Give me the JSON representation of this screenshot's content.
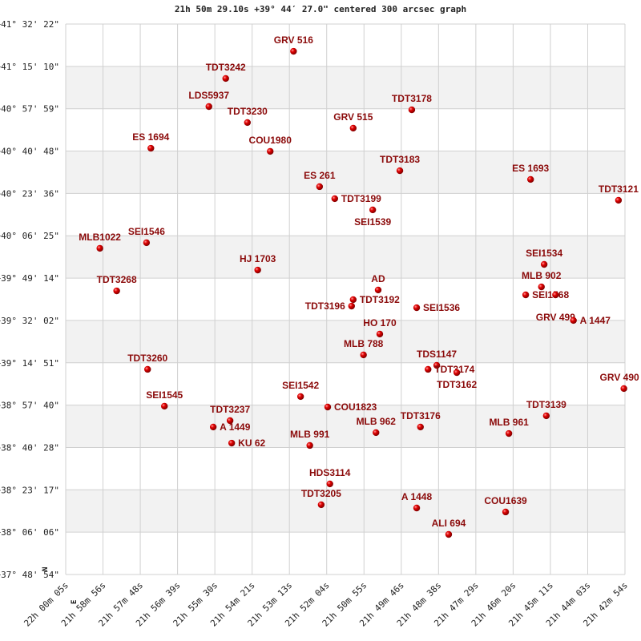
{
  "chart_data": {
    "type": "scatter",
    "title": "21h 50m 29.10s +39° 44′ 27.0\" centered 300 arcsec graph",
    "x_range": [
      "22:00:05",
      "21:42:54"
    ],
    "y_range": [
      "+41:32:22",
      "+37:48:54"
    ],
    "x_ticks": [
      "22h 00m 05s",
      "21h 58m 56s",
      "21h 57m 48s",
      "21h 56m 39s",
      "21h 55m 30s",
      "21h 54m 21s",
      "21h 53m 13s",
      "21h 52m 04s",
      "21h 50m 55s",
      "21h 49m 46s",
      "21h 48m 38s",
      "21h 47m 29s",
      "21h 46m 20s",
      "21h 45m 11s",
      "21h 44m 03s",
      "21h 42m 54s"
    ],
    "y_ticks": [
      "+41° 32' 22\"",
      "+41° 15' 10\"",
      "+40° 57' 59\"",
      "+40° 40' 48\"",
      "+40° 23' 36\"",
      "+40° 06' 25\"",
      "+39° 49' 14\"",
      "+39° 32' 02\"",
      "+39° 14' 51\"",
      "+38° 57' 40\"",
      "+38° 40' 28\"",
      "+38° 23' 17\"",
      "+38° 06' 06\"",
      "+37° 48' 54\""
    ],
    "grid": true,
    "alternating_bands": true,
    "compass": {
      "north": "N",
      "east": "E"
    },
    "colors": {
      "marker": "#dd0000",
      "label": "#8b0a0a",
      "band": "#f2f2f2",
      "grid": "#d0d0d0"
    },
    "points": [
      {
        "name": "GRV 516",
        "ra": "21:53:05",
        "dec": 41.355
      },
      {
        "name": "TDT3242",
        "ra": "21:55:10",
        "dec": 41.171
      },
      {
        "name": "LDS5937",
        "ra": "21:55:41",
        "dec": 40.981
      },
      {
        "name": "TDT3230",
        "ra": "21:54:30",
        "dec": 40.873
      },
      {
        "name": "TDT3178",
        "ra": "21:49:27",
        "dec": 40.959
      },
      {
        "name": "GRV 515",
        "ra": "21:51:15",
        "dec": 40.835
      },
      {
        "name": "ES 1694",
        "ra": "21:57:28",
        "dec": 40.699
      },
      {
        "name": "COU1980",
        "ra": "21:53:48",
        "dec": 40.678
      },
      {
        "name": "TDT3183",
        "ra": "21:49:49",
        "dec": 40.547
      },
      {
        "name": "ES 1693",
        "ra": "21:45:48",
        "dec": 40.488
      },
      {
        "name": "ES  261",
        "ra": "21:52:17",
        "dec": 40.439
      },
      {
        "name": "TDT3199",
        "ra": "21:51:49",
        "dec": 40.358
      },
      {
        "name": "SEI1539",
        "ra": "21:50:39",
        "dec": 40.282
      },
      {
        "name": "TDT3121",
        "ra": "21:43:06",
        "dec": 40.347
      },
      {
        "name": "MLB1022",
        "ra": "21:59:02",
        "dec": 40.022
      },
      {
        "name": "SEI1546",
        "ra": "21:57:36",
        "dec": 40.06
      },
      {
        "name": "HJ 1703",
        "ra": "21:54:11",
        "dec": 39.875
      },
      {
        "name": "SEI1534",
        "ra": "21:45:23",
        "dec": 39.913
      },
      {
        "name": "MLB 902",
        "ra": "21:45:28",
        "dec": 39.761
      },
      {
        "name": "SEI1568",
        "ra": "21:45:57",
        "dec": 39.707
      },
      {
        "name": "GRV 499",
        "ra": "21:45:02",
        "dec": 39.707
      },
      {
        "name": "TDT3268",
        "ra": "21:58:31",
        "dec": 39.734
      },
      {
        "name": "AD",
        "ra": "21:50:29",
        "dec": 39.74
      },
      {
        "name": "TDT3192",
        "ra": "21:51:15",
        "dec": 39.675
      },
      {
        "name": "TDT3196",
        "ra": "21:51:18",
        "dec": 39.631
      },
      {
        "name": "SEI1536",
        "ra": "21:49:18",
        "dec": 39.62
      },
      {
        "name": "A  1447",
        "ra": "21:44:29",
        "dec": 39.534
      },
      {
        "name": "HO  170",
        "ra": "21:50:26",
        "dec": 39.442
      },
      {
        "name": "MLB 788",
        "ra": "21:50:56",
        "dec": 39.301
      },
      {
        "name": "TDT3260",
        "ra": "21:57:34",
        "dec": 39.203
      },
      {
        "name": "TDS1147",
        "ra": "21:48:41",
        "dec": 39.23
      },
      {
        "name": "TDT3174",
        "ra": "21:48:57",
        "dec": 39.203
      },
      {
        "name": "TDT3162",
        "ra": "21:48:04",
        "dec": 39.181
      },
      {
        "name": "GRV 490",
        "ra": "21:42:56",
        "dec": 39.073
      },
      {
        "name": "SEI1542",
        "ra": "21:52:52",
        "dec": 39.019
      },
      {
        "name": "COU1823",
        "ra": "21:52:02",
        "dec": 38.948
      },
      {
        "name": "SEI1545",
        "ra": "21:57:03",
        "dec": 38.954
      },
      {
        "name": "TDT3237",
        "ra": "21:55:02",
        "dec": 38.856
      },
      {
        "name": "A  1449",
        "ra": "21:55:33",
        "dec": 38.813
      },
      {
        "name": "KU   62",
        "ra": "21:54:59",
        "dec": 38.704
      },
      {
        "name": "TDT3139",
        "ra": "21:45:19",
        "dec": 38.889
      },
      {
        "name": "MLB 962",
        "ra": "21:50:33",
        "dec": 38.775
      },
      {
        "name": "TDT3176",
        "ra": "21:49:11",
        "dec": 38.813
      },
      {
        "name": "MLB 961",
        "ra": "21:46:28",
        "dec": 38.769
      },
      {
        "name": "MLB 991",
        "ra": "21:52:35",
        "dec": 38.688
      },
      {
        "name": "HDS3114",
        "ra": "21:51:58",
        "dec": 38.428
      },
      {
        "name": "TDT3205",
        "ra": "21:52:14",
        "dec": 38.287
      },
      {
        "name": "A  1448",
        "ra": "21:49:18",
        "dec": 38.265
      },
      {
        "name": "COU1639",
        "ra": "21:46:34",
        "dec": 38.238
      },
      {
        "name": "ALI 694",
        "ra": "21:48:19",
        "dec": 38.086
      }
    ]
  }
}
